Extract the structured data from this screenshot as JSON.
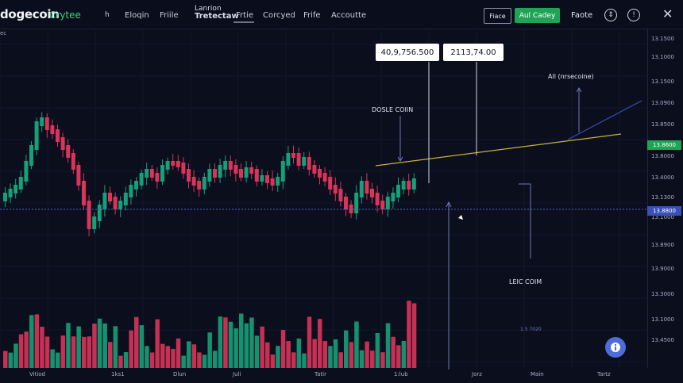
{
  "header": {
    "brand": "dogecoin",
    "brand_sub": "Crytee",
    "nav": [
      "h",
      "Eloqin",
      "Friile"
    ],
    "nav_stack_top": "Lanrion",
    "nav_stack_bottom": "Tretectaw",
    "nav_right": [
      "Frtie",
      "Corcyed",
      "Frife",
      "Accoutte"
    ],
    "btn_outline": "Fiace",
    "btn_green": "Aul Cadey",
    "btn_text": "Faote",
    "icons": [
      "chevron-up-down-icon",
      "info-icon",
      "close-icon"
    ]
  },
  "left_label": "ec",
  "y_axis_labels": [
    "13.1500",
    "13.1000",
    "13.1500",
    "13.0900",
    "13.8500",
    "13.8000",
    "13.4000",
    "13.1300",
    "13.1000",
    "13.8900",
    "13.9000",
    "13.3000",
    "13.1000",
    "13.4500"
  ],
  "y_badge_green": "13.8600",
  "y_badge_blue": "13.8800",
  "x_axis_labels": [
    "Vitiod",
    "1ks1",
    "Dlun",
    "Juli",
    "Tatir",
    "1:lub",
    "Jorz",
    "Main",
    "Tartz"
  ],
  "callouts": [
    "40,9,756.500",
    "2113,74.00"
  ],
  "annotations": {
    "doge_coin": "DOSLE COIIN",
    "all_insecoine": "All (nrsecoine)",
    "lec_com": "LEIC COIM",
    "dim_label": "1.5 7020"
  },
  "colors": {
    "up": "#16a07a",
    "down": "#d9345a",
    "trend": "#c9b23a",
    "channel": "#3b4bb0",
    "bg": "#0b0e1d"
  },
  "fab_icon": "info-icon"
}
